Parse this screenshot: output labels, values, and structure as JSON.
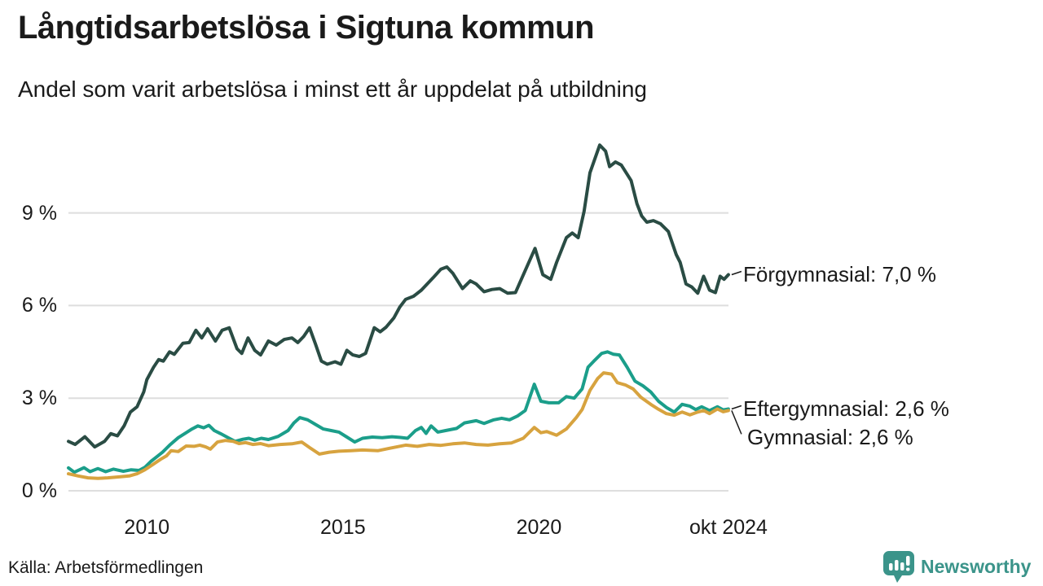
{
  "chart_data": {
    "type": "line",
    "title": "Långtidsarbetslösa i Sigtuna kommun",
    "subtitle": "Andel som varit arbetslösa i minst ett år uppdelat på utbildning",
    "unit": "%",
    "grid": true,
    "grid_color": "#dedede",
    "text_color": "#1a1a1a",
    "xlim": [
      2008.0,
      2024.833
    ],
    "ylim": [
      0,
      11.5
    ],
    "y_ticks": [
      {
        "value": 0,
        "label": "0 %"
      },
      {
        "value": 3,
        "label": "3 %"
      },
      {
        "value": 6,
        "label": "6 %"
      },
      {
        "value": 9,
        "label": "9 %"
      }
    ],
    "x_ticks": [
      {
        "value": 2010,
        "label": "2010"
      },
      {
        "value": 2015,
        "label": "2015"
      },
      {
        "value": 2020,
        "label": "2020"
      },
      {
        "value": 2024.833,
        "label": "okt 2024"
      }
    ],
    "legend_position": "right-end-labels",
    "series": [
      {
        "name": "Förgymnasial",
        "color": "#2a4c44",
        "end_label": "Förgymnasial: 7,0 %",
        "end_value": "7,0 %",
        "label_dx": 0,
        "label_dy": 0,
        "points": [
          [
            2008.0,
            1.6
          ],
          [
            2008.17,
            1.5
          ],
          [
            2008.42,
            1.75
          ],
          [
            2008.67,
            1.42
          ],
          [
            2008.92,
            1.6
          ],
          [
            2009.08,
            1.85
          ],
          [
            2009.25,
            1.78
          ],
          [
            2009.42,
            2.1
          ],
          [
            2009.58,
            2.55
          ],
          [
            2009.75,
            2.72
          ],
          [
            2009.92,
            3.2
          ],
          [
            2010.0,
            3.6
          ],
          [
            2010.17,
            4.0
          ],
          [
            2010.3,
            4.25
          ],
          [
            2010.42,
            4.2
          ],
          [
            2010.58,
            4.5
          ],
          [
            2010.7,
            4.42
          ],
          [
            2010.92,
            4.78
          ],
          [
            2011.08,
            4.8
          ],
          [
            2011.25,
            5.2
          ],
          [
            2011.4,
            4.95
          ],
          [
            2011.55,
            5.25
          ],
          [
            2011.75,
            4.85
          ],
          [
            2011.92,
            5.2
          ],
          [
            2012.1,
            5.28
          ],
          [
            2012.3,
            4.6
          ],
          [
            2012.42,
            4.45
          ],
          [
            2012.58,
            4.95
          ],
          [
            2012.75,
            4.55
          ],
          [
            2012.9,
            4.4
          ],
          [
            2013.1,
            4.85
          ],
          [
            2013.3,
            4.72
          ],
          [
            2013.5,
            4.9
          ],
          [
            2013.7,
            4.95
          ],
          [
            2013.85,
            4.8
          ],
          [
            2014.0,
            5.0
          ],
          [
            2014.15,
            5.28
          ],
          [
            2014.3,
            4.75
          ],
          [
            2014.45,
            4.2
          ],
          [
            2014.6,
            4.1
          ],
          [
            2014.8,
            4.18
          ],
          [
            2014.95,
            4.1
          ],
          [
            2015.1,
            4.55
          ],
          [
            2015.25,
            4.4
          ],
          [
            2015.42,
            4.35
          ],
          [
            2015.58,
            4.45
          ],
          [
            2015.8,
            5.28
          ],
          [
            2015.95,
            5.15
          ],
          [
            2016.1,
            5.3
          ],
          [
            2016.3,
            5.6
          ],
          [
            2016.45,
            5.95
          ],
          [
            2016.6,
            6.2
          ],
          [
            2016.8,
            6.3
          ],
          [
            2017.0,
            6.5
          ],
          [
            2017.3,
            6.9
          ],
          [
            2017.5,
            7.18
          ],
          [
            2017.65,
            7.25
          ],
          [
            2017.8,
            7.05
          ],
          [
            2018.05,
            6.55
          ],
          [
            2018.25,
            6.8
          ],
          [
            2018.4,
            6.7
          ],
          [
            2018.6,
            6.45
          ],
          [
            2018.8,
            6.52
          ],
          [
            2019.0,
            6.55
          ],
          [
            2019.2,
            6.4
          ],
          [
            2019.4,
            6.42
          ],
          [
            2019.55,
            6.85
          ],
          [
            2019.9,
            7.85
          ],
          [
            2020.1,
            7.0
          ],
          [
            2020.3,
            6.85
          ],
          [
            2020.45,
            7.4
          ],
          [
            2020.7,
            8.2
          ],
          [
            2020.85,
            8.35
          ],
          [
            2021.0,
            8.2
          ],
          [
            2021.15,
            9.05
          ],
          [
            2021.3,
            10.3
          ],
          [
            2021.55,
            11.2
          ],
          [
            2021.7,
            11.0
          ],
          [
            2021.8,
            10.5
          ],
          [
            2021.95,
            10.65
          ],
          [
            2022.1,
            10.55
          ],
          [
            2022.35,
            10.05
          ],
          [
            2022.5,
            9.3
          ],
          [
            2022.62,
            8.9
          ],
          [
            2022.75,
            8.7
          ],
          [
            2022.92,
            8.75
          ],
          [
            2023.1,
            8.65
          ],
          [
            2023.3,
            8.4
          ],
          [
            2023.5,
            7.65
          ],
          [
            2023.6,
            7.4
          ],
          [
            2023.75,
            6.7
          ],
          [
            2023.9,
            6.6
          ],
          [
            2024.05,
            6.4
          ],
          [
            2024.2,
            6.95
          ],
          [
            2024.35,
            6.5
          ],
          [
            2024.5,
            6.42
          ],
          [
            2024.62,
            6.95
          ],
          [
            2024.72,
            6.85
          ],
          [
            2024.83,
            7.0
          ]
        ]
      },
      {
        "name": "Eftergymnasial",
        "color": "#1b9e8a",
        "end_label": "Eftergymnasial: 2,6 %",
        "end_value": "2,6 %",
        "label_dx": 0,
        "label_dy": 0,
        "points": [
          [
            2008.0,
            0.74
          ],
          [
            2008.15,
            0.6
          ],
          [
            2008.4,
            0.75
          ],
          [
            2008.55,
            0.62
          ],
          [
            2008.75,
            0.72
          ],
          [
            2008.95,
            0.62
          ],
          [
            2009.15,
            0.7
          ],
          [
            2009.4,
            0.63
          ],
          [
            2009.6,
            0.68
          ],
          [
            2009.8,
            0.66
          ],
          [
            2009.95,
            0.76
          ],
          [
            2010.1,
            0.95
          ],
          [
            2010.25,
            1.1
          ],
          [
            2010.4,
            1.25
          ],
          [
            2010.6,
            1.5
          ],
          [
            2010.8,
            1.72
          ],
          [
            2011.0,
            1.88
          ],
          [
            2011.15,
            2.0
          ],
          [
            2011.3,
            2.1
          ],
          [
            2011.45,
            2.04
          ],
          [
            2011.58,
            2.12
          ],
          [
            2011.72,
            1.95
          ],
          [
            2011.88,
            1.85
          ],
          [
            2012.1,
            1.7
          ],
          [
            2012.25,
            1.6
          ],
          [
            2012.45,
            1.67
          ],
          [
            2012.6,
            1.7
          ],
          [
            2012.75,
            1.64
          ],
          [
            2012.92,
            1.7
          ],
          [
            2013.1,
            1.66
          ],
          [
            2013.35,
            1.76
          ],
          [
            2013.6,
            1.95
          ],
          [
            2013.75,
            2.2
          ],
          [
            2013.9,
            2.37
          ],
          [
            2014.1,
            2.3
          ],
          [
            2014.3,
            2.15
          ],
          [
            2014.5,
            2.0
          ],
          [
            2014.7,
            1.95
          ],
          [
            2014.9,
            1.9
          ],
          [
            2015.1,
            1.74
          ],
          [
            2015.3,
            1.58
          ],
          [
            2015.5,
            1.7
          ],
          [
            2015.75,
            1.74
          ],
          [
            2016.0,
            1.72
          ],
          [
            2016.25,
            1.75
          ],
          [
            2016.45,
            1.73
          ],
          [
            2016.65,
            1.7
          ],
          [
            2016.85,
            1.95
          ],
          [
            2017.0,
            2.05
          ],
          [
            2017.12,
            1.86
          ],
          [
            2017.25,
            2.1
          ],
          [
            2017.42,
            1.9
          ],
          [
            2017.62,
            1.95
          ],
          [
            2017.9,
            2.02
          ],
          [
            2018.1,
            2.2
          ],
          [
            2018.4,
            2.27
          ],
          [
            2018.6,
            2.18
          ],
          [
            2018.85,
            2.3
          ],
          [
            2019.05,
            2.35
          ],
          [
            2019.25,
            2.3
          ],
          [
            2019.45,
            2.42
          ],
          [
            2019.65,
            2.6
          ],
          [
            2019.88,
            3.45
          ],
          [
            2020.05,
            2.9
          ],
          [
            2020.25,
            2.85
          ],
          [
            2020.5,
            2.85
          ],
          [
            2020.7,
            3.05
          ],
          [
            2020.9,
            3.0
          ],
          [
            2021.1,
            3.3
          ],
          [
            2021.25,
            4.0
          ],
          [
            2021.4,
            4.2
          ],
          [
            2021.6,
            4.45
          ],
          [
            2021.75,
            4.5
          ],
          [
            2021.9,
            4.42
          ],
          [
            2022.05,
            4.4
          ],
          [
            2022.25,
            4.0
          ],
          [
            2022.45,
            3.55
          ],
          [
            2022.65,
            3.4
          ],
          [
            2022.85,
            3.2
          ],
          [
            2023.05,
            2.9
          ],
          [
            2023.25,
            2.7
          ],
          [
            2023.45,
            2.55
          ],
          [
            2023.65,
            2.8
          ],
          [
            2023.85,
            2.74
          ],
          [
            2024.0,
            2.63
          ],
          [
            2024.15,
            2.72
          ],
          [
            2024.35,
            2.6
          ],
          [
            2024.55,
            2.72
          ],
          [
            2024.7,
            2.62
          ],
          [
            2024.83,
            2.65
          ]
        ]
      },
      {
        "name": "Gymnasial",
        "color": "#d7a33f",
        "end_label": "Gymnasial: 2,6 %",
        "end_value": "2,6 %",
        "label_dx": 5,
        "label_dy": 33,
        "points": [
          [
            2008.0,
            0.55
          ],
          [
            2008.25,
            0.48
          ],
          [
            2008.5,
            0.42
          ],
          [
            2008.75,
            0.4
          ],
          [
            2009.0,
            0.42
          ],
          [
            2009.3,
            0.45
          ],
          [
            2009.55,
            0.48
          ],
          [
            2009.75,
            0.55
          ],
          [
            2009.95,
            0.68
          ],
          [
            2010.15,
            0.85
          ],
          [
            2010.35,
            1.02
          ],
          [
            2010.5,
            1.13
          ],
          [
            2010.62,
            1.3
          ],
          [
            2010.8,
            1.27
          ],
          [
            2011.0,
            1.45
          ],
          [
            2011.2,
            1.44
          ],
          [
            2011.35,
            1.48
          ],
          [
            2011.5,
            1.42
          ],
          [
            2011.62,
            1.35
          ],
          [
            2011.8,
            1.58
          ],
          [
            2012.0,
            1.63
          ],
          [
            2012.2,
            1.6
          ],
          [
            2012.35,
            1.53
          ],
          [
            2012.52,
            1.56
          ],
          [
            2012.7,
            1.5
          ],
          [
            2012.9,
            1.53
          ],
          [
            2013.1,
            1.46
          ],
          [
            2013.4,
            1.5
          ],
          [
            2013.7,
            1.52
          ],
          [
            2013.95,
            1.58
          ],
          [
            2014.15,
            1.4
          ],
          [
            2014.4,
            1.19
          ],
          [
            2014.65,
            1.25
          ],
          [
            2014.9,
            1.28
          ],
          [
            2015.2,
            1.3
          ],
          [
            2015.5,
            1.32
          ],
          [
            2015.9,
            1.3
          ],
          [
            2016.2,
            1.38
          ],
          [
            2016.6,
            1.48
          ],
          [
            2016.9,
            1.44
          ],
          [
            2017.2,
            1.5
          ],
          [
            2017.5,
            1.47
          ],
          [
            2017.8,
            1.52
          ],
          [
            2018.1,
            1.55
          ],
          [
            2018.4,
            1.5
          ],
          [
            2018.7,
            1.48
          ],
          [
            2019.0,
            1.52
          ],
          [
            2019.3,
            1.55
          ],
          [
            2019.6,
            1.7
          ],
          [
            2019.88,
            2.05
          ],
          [
            2020.05,
            1.88
          ],
          [
            2020.2,
            1.92
          ],
          [
            2020.45,
            1.8
          ],
          [
            2020.7,
            2.0
          ],
          [
            2020.95,
            2.37
          ],
          [
            2021.1,
            2.63
          ],
          [
            2021.3,
            3.25
          ],
          [
            2021.5,
            3.64
          ],
          [
            2021.65,
            3.82
          ],
          [
            2021.85,
            3.78
          ],
          [
            2022.0,
            3.5
          ],
          [
            2022.2,
            3.43
          ],
          [
            2022.4,
            3.3
          ],
          [
            2022.6,
            3.03
          ],
          [
            2022.85,
            2.8
          ],
          [
            2023.05,
            2.64
          ],
          [
            2023.25,
            2.5
          ],
          [
            2023.45,
            2.45
          ],
          [
            2023.65,
            2.55
          ],
          [
            2023.85,
            2.46
          ],
          [
            2024.05,
            2.55
          ],
          [
            2024.2,
            2.6
          ],
          [
            2024.35,
            2.5
          ],
          [
            2024.55,
            2.65
          ],
          [
            2024.7,
            2.56
          ],
          [
            2024.83,
            2.6
          ]
        ]
      }
    ]
  },
  "footer": {
    "source": "Källa: Arbetsförmedlingen",
    "brand": "Newsworthy",
    "brand_color": "#3b948a"
  }
}
